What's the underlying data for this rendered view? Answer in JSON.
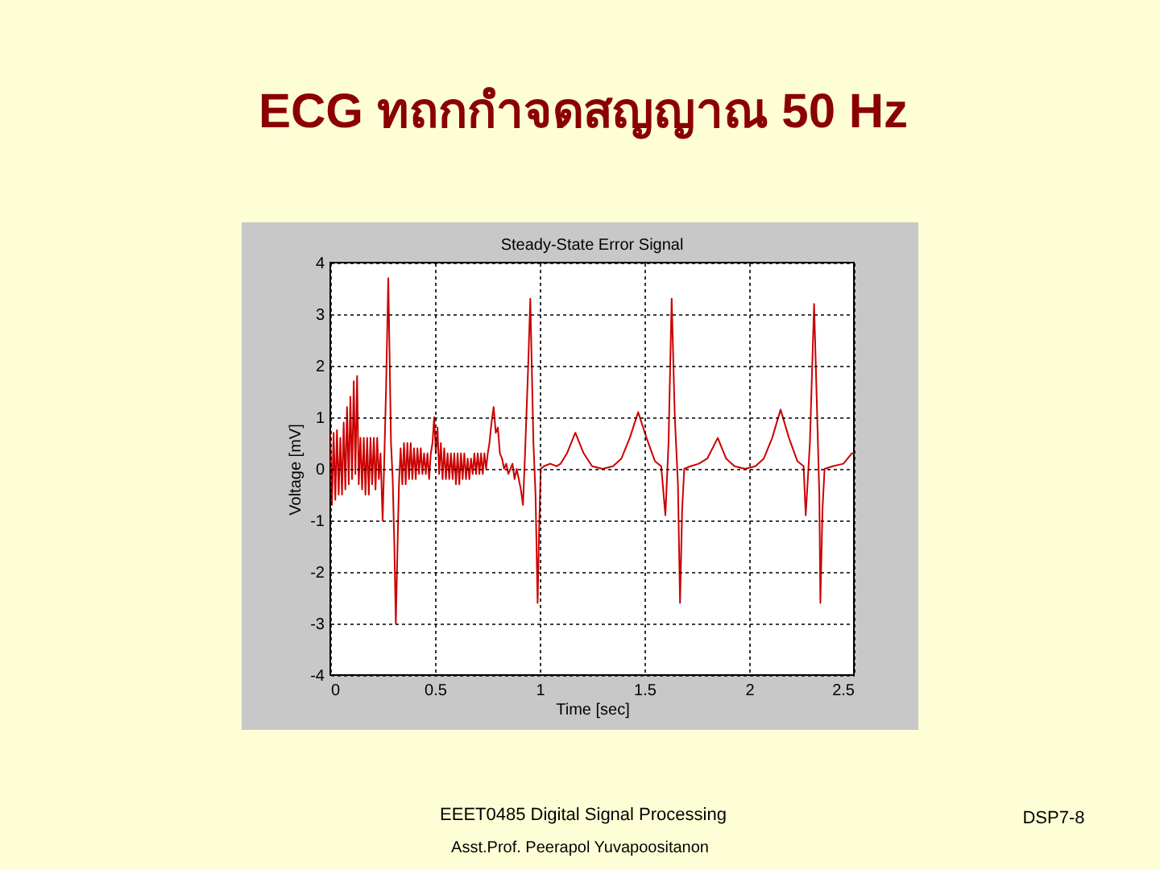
{
  "chart_data": {
    "type": "line",
    "title": "ECG ทถกกำจดสญญาณ 50 Hz",
    "subtitle": "Steady-State Error Signal",
    "xlabel": "Time [sec]",
    "ylabel": "Voltage [mV]",
    "annotations": [
      "EEET0485 Digital Signal Processing",
      "Asst.Prof. Peerapol Yuvapoositanon",
      "DSP7-8"
    ],
    "xlim": [
      0,
      2.5
    ],
    "ylim": [
      -4,
      4
    ],
    "xticks": [
      0,
      0.5,
      1,
      1.5,
      2,
      2.5
    ],
    "yticks": [
      -4,
      -3,
      -2,
      -1,
      0,
      1,
      2,
      3,
      4
    ],
    "grid": true,
    "line_style": "solid",
    "x": [
      0.0,
      0.008,
      0.016,
      0.024,
      0.032,
      0.04,
      0.048,
      0.056,
      0.064,
      0.072,
      0.08,
      0.088,
      0.096,
      0.104,
      0.112,
      0.12,
      0.128,
      0.136,
      0.144,
      0.152,
      0.16,
      0.168,
      0.176,
      0.184,
      0.192,
      0.2,
      0.208,
      0.216,
      0.224,
      0.232,
      0.24,
      0.25,
      0.258,
      0.266,
      0.277,
      0.284,
      0.29,
      0.298,
      0.306,
      0.313,
      0.32,
      0.328,
      0.336,
      0.344,
      0.352,
      0.36,
      0.368,
      0.376,
      0.384,
      0.392,
      0.4,
      0.408,
      0.416,
      0.424,
      0.432,
      0.44,
      0.448,
      0.456,
      0.464,
      0.472,
      0.48,
      0.488,
      0.496,
      0.504,
      0.512,
      0.52,
      0.528,
      0.536,
      0.544,
      0.552,
      0.56,
      0.568,
      0.576,
      0.584,
      0.592,
      0.6,
      0.608,
      0.616,
      0.624,
      0.632,
      0.64,
      0.648,
      0.656,
      0.664,
      0.672,
      0.68,
      0.688,
      0.696,
      0.704,
      0.712,
      0.72,
      0.728,
      0.736,
      0.744,
      0.752,
      0.76,
      0.77,
      0.78,
      0.79,
      0.8,
      0.81,
      0.82,
      0.83,
      0.84,
      0.85,
      0.86,
      0.87,
      0.88,
      0.89,
      0.9,
      0.91,
      0.92,
      0.93,
      0.945,
      0.955,
      0.962,
      0.97,
      0.98,
      0.99,
      0.997,
      1.005,
      1.02,
      1.05,
      1.08,
      1.1,
      1.13,
      1.17,
      1.21,
      1.25,
      1.3,
      1.35,
      1.39,
      1.43,
      1.47,
      1.51,
      1.55,
      1.58,
      1.6,
      1.615,
      1.63,
      1.645,
      1.66,
      1.67,
      1.68,
      1.69,
      1.72,
      1.76,
      1.8,
      1.85,
      1.89,
      1.93,
      1.98,
      2.03,
      2.07,
      2.11,
      2.15,
      2.19,
      2.23,
      2.26,
      2.27,
      2.29,
      2.31,
      2.325,
      2.335,
      2.34,
      2.35,
      2.36,
      2.4,
      2.45,
      2.49,
      2.5
    ],
    "series": [
      {
        "color": "#cc0000",
        "values": [
          0.7,
          -0.7,
          0.7,
          -0.6,
          0.75,
          -0.5,
          0.6,
          -0.5,
          0.9,
          -0.4,
          1.2,
          -0.3,
          1.4,
          -0.2,
          1.7,
          -0.1,
          1.8,
          -0.3,
          0.6,
          -0.4,
          0.6,
          -0.5,
          0.6,
          -0.5,
          0.6,
          -0.3,
          0.6,
          -0.4,
          0.6,
          -0.2,
          0.3,
          -1.0,
          0.2,
          1.5,
          3.7,
          2.0,
          0.5,
          -0.2,
          -1.5,
          -3.0,
          -1.7,
          -0.3,
          0.4,
          -0.3,
          0.5,
          -0.3,
          0.5,
          -0.2,
          0.5,
          -0.2,
          0.4,
          -0.2,
          0.4,
          -0.1,
          0.4,
          -0.1,
          0.3,
          -0.1,
          0.3,
          -0.2,
          0.3,
          0.5,
          1.0,
          0.3,
          0.8,
          -0.1,
          0.5,
          -0.2,
          0.4,
          -0.2,
          0.3,
          -0.2,
          0.3,
          -0.2,
          0.3,
          -0.3,
          0.3,
          -0.3,
          0.3,
          -0.2,
          0.3,
          -0.2,
          0.2,
          -0.2,
          0.2,
          -0.1,
          0.3,
          -0.1,
          0.3,
          -0.1,
          0.3,
          -0.1,
          0.3,
          0.0,
          0.3,
          0.5,
          0.9,
          1.2,
          0.7,
          0.8,
          0.3,
          0.2,
          0.0,
          0.1,
          -0.1,
          0.0,
          0.1,
          -0.2,
          0.0,
          -0.2,
          -0.4,
          -0.7,
          0.3,
          2.0,
          3.3,
          2.0,
          0.5,
          -0.5,
          -2.6,
          -1.2,
          0.0,
          0.05,
          0.1,
          0.05,
          0.1,
          0.3,
          0.7,
          0.3,
          0.05,
          0.0,
          0.05,
          0.2,
          0.6,
          1.1,
          0.6,
          0.15,
          0.05,
          -0.9,
          0.5,
          3.3,
          1.0,
          -0.3,
          -2.6,
          -0.8,
          0.0,
          0.05,
          0.1,
          0.2,
          0.6,
          0.2,
          0.05,
          0.0,
          0.05,
          0.2,
          0.6,
          1.15,
          0.6,
          0.15,
          0.05,
          -0.9,
          0.5,
          3.2,
          1.0,
          -0.5,
          -2.6,
          -0.8,
          0.0,
          0.05,
          0.1,
          0.3,
          0.3
        ]
      }
    ]
  }
}
